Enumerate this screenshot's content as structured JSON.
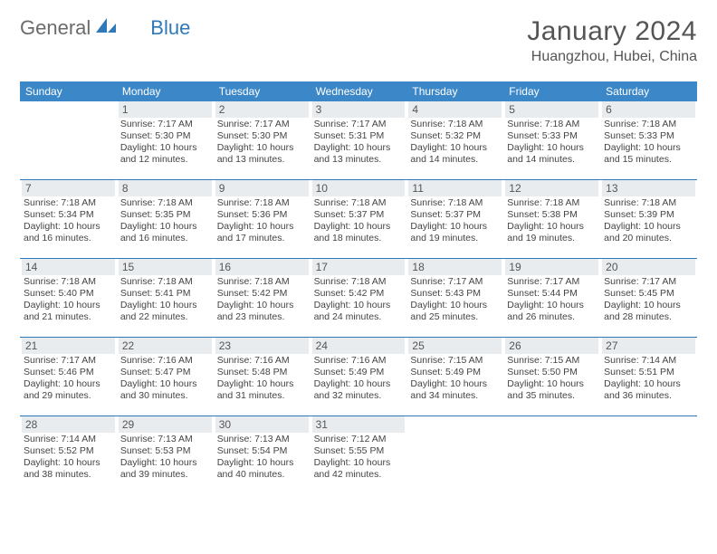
{
  "logo": {
    "text1": "General",
    "text2": "Blue"
  },
  "title": "January 2024",
  "location": "Huangzhou, Hubei, China",
  "colors": {
    "header_bg": "#3c87c7",
    "rule": "#2f79b9",
    "daynum_bg": "#e9ecef",
    "text": "#444444"
  },
  "day_names": [
    "Sunday",
    "Monday",
    "Tuesday",
    "Wednesday",
    "Thursday",
    "Friday",
    "Saturday"
  ],
  "weeks": [
    [
      {
        "n": "",
        "sun": "",
        "set": "",
        "day": ""
      },
      {
        "n": "1",
        "sun": "Sunrise: 7:17 AM",
        "set": "Sunset: 5:30 PM",
        "day": "Daylight: 10 hours and 12 minutes."
      },
      {
        "n": "2",
        "sun": "Sunrise: 7:17 AM",
        "set": "Sunset: 5:30 PM",
        "day": "Daylight: 10 hours and 13 minutes."
      },
      {
        "n": "3",
        "sun": "Sunrise: 7:17 AM",
        "set": "Sunset: 5:31 PM",
        "day": "Daylight: 10 hours and 13 minutes."
      },
      {
        "n": "4",
        "sun": "Sunrise: 7:18 AM",
        "set": "Sunset: 5:32 PM",
        "day": "Daylight: 10 hours and 14 minutes."
      },
      {
        "n": "5",
        "sun": "Sunrise: 7:18 AM",
        "set": "Sunset: 5:33 PM",
        "day": "Daylight: 10 hours and 14 minutes."
      },
      {
        "n": "6",
        "sun": "Sunrise: 7:18 AM",
        "set": "Sunset: 5:33 PM",
        "day": "Daylight: 10 hours and 15 minutes."
      }
    ],
    [
      {
        "n": "7",
        "sun": "Sunrise: 7:18 AM",
        "set": "Sunset: 5:34 PM",
        "day": "Daylight: 10 hours and 16 minutes."
      },
      {
        "n": "8",
        "sun": "Sunrise: 7:18 AM",
        "set": "Sunset: 5:35 PM",
        "day": "Daylight: 10 hours and 16 minutes."
      },
      {
        "n": "9",
        "sun": "Sunrise: 7:18 AM",
        "set": "Sunset: 5:36 PM",
        "day": "Daylight: 10 hours and 17 minutes."
      },
      {
        "n": "10",
        "sun": "Sunrise: 7:18 AM",
        "set": "Sunset: 5:37 PM",
        "day": "Daylight: 10 hours and 18 minutes."
      },
      {
        "n": "11",
        "sun": "Sunrise: 7:18 AM",
        "set": "Sunset: 5:37 PM",
        "day": "Daylight: 10 hours and 19 minutes."
      },
      {
        "n": "12",
        "sun": "Sunrise: 7:18 AM",
        "set": "Sunset: 5:38 PM",
        "day": "Daylight: 10 hours and 19 minutes."
      },
      {
        "n": "13",
        "sun": "Sunrise: 7:18 AM",
        "set": "Sunset: 5:39 PM",
        "day": "Daylight: 10 hours and 20 minutes."
      }
    ],
    [
      {
        "n": "14",
        "sun": "Sunrise: 7:18 AM",
        "set": "Sunset: 5:40 PM",
        "day": "Daylight: 10 hours and 21 minutes."
      },
      {
        "n": "15",
        "sun": "Sunrise: 7:18 AM",
        "set": "Sunset: 5:41 PM",
        "day": "Daylight: 10 hours and 22 minutes."
      },
      {
        "n": "16",
        "sun": "Sunrise: 7:18 AM",
        "set": "Sunset: 5:42 PM",
        "day": "Daylight: 10 hours and 23 minutes."
      },
      {
        "n": "17",
        "sun": "Sunrise: 7:18 AM",
        "set": "Sunset: 5:42 PM",
        "day": "Daylight: 10 hours and 24 minutes."
      },
      {
        "n": "18",
        "sun": "Sunrise: 7:17 AM",
        "set": "Sunset: 5:43 PM",
        "day": "Daylight: 10 hours and 25 minutes."
      },
      {
        "n": "19",
        "sun": "Sunrise: 7:17 AM",
        "set": "Sunset: 5:44 PM",
        "day": "Daylight: 10 hours and 26 minutes."
      },
      {
        "n": "20",
        "sun": "Sunrise: 7:17 AM",
        "set": "Sunset: 5:45 PM",
        "day": "Daylight: 10 hours and 28 minutes."
      }
    ],
    [
      {
        "n": "21",
        "sun": "Sunrise: 7:17 AM",
        "set": "Sunset: 5:46 PM",
        "day": "Daylight: 10 hours and 29 minutes."
      },
      {
        "n": "22",
        "sun": "Sunrise: 7:16 AM",
        "set": "Sunset: 5:47 PM",
        "day": "Daylight: 10 hours and 30 minutes."
      },
      {
        "n": "23",
        "sun": "Sunrise: 7:16 AM",
        "set": "Sunset: 5:48 PM",
        "day": "Daylight: 10 hours and 31 minutes."
      },
      {
        "n": "24",
        "sun": "Sunrise: 7:16 AM",
        "set": "Sunset: 5:49 PM",
        "day": "Daylight: 10 hours and 32 minutes."
      },
      {
        "n": "25",
        "sun": "Sunrise: 7:15 AM",
        "set": "Sunset: 5:49 PM",
        "day": "Daylight: 10 hours and 34 minutes."
      },
      {
        "n": "26",
        "sun": "Sunrise: 7:15 AM",
        "set": "Sunset: 5:50 PM",
        "day": "Daylight: 10 hours and 35 minutes."
      },
      {
        "n": "27",
        "sun": "Sunrise: 7:14 AM",
        "set": "Sunset: 5:51 PM",
        "day": "Daylight: 10 hours and 36 minutes."
      }
    ],
    [
      {
        "n": "28",
        "sun": "Sunrise: 7:14 AM",
        "set": "Sunset: 5:52 PM",
        "day": "Daylight: 10 hours and 38 minutes."
      },
      {
        "n": "29",
        "sun": "Sunrise: 7:13 AM",
        "set": "Sunset: 5:53 PM",
        "day": "Daylight: 10 hours and 39 minutes."
      },
      {
        "n": "30",
        "sun": "Sunrise: 7:13 AM",
        "set": "Sunset: 5:54 PM",
        "day": "Daylight: 10 hours and 40 minutes."
      },
      {
        "n": "31",
        "sun": "Sunrise: 7:12 AM",
        "set": "Sunset: 5:55 PM",
        "day": "Daylight: 10 hours and 42 minutes."
      },
      {
        "n": "",
        "sun": "",
        "set": "",
        "day": ""
      },
      {
        "n": "",
        "sun": "",
        "set": "",
        "day": ""
      },
      {
        "n": "",
        "sun": "",
        "set": "",
        "day": ""
      }
    ]
  ]
}
